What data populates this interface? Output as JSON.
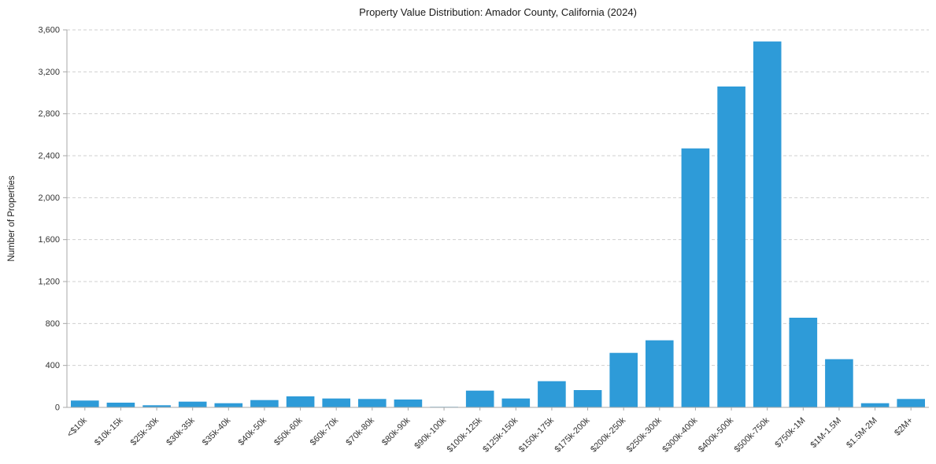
{
  "chart": {
    "title": "Property Value Distribution: Amador County, California (2024)",
    "ylabel": "Number of Properties"
  },
  "colors": {
    "bar": "#2E9BD8",
    "grid": "#cfcfcf",
    "axis": "#a8a8a8",
    "text": "#333333"
  },
  "chart_data": {
    "type": "bar",
    "title": "Property Value Distribution: Amador County, California (2024)",
    "xlabel": "",
    "ylabel": "Number of Properties",
    "categories": [
      "<$10k",
      "$10k-15k",
      "$25k-30k",
      "$30k-35k",
      "$35k-40k",
      "$40k-50k",
      "$50k-60k",
      "$60k-70k",
      "$70k-80k",
      "$80k-90k",
      "$90k-100k",
      "$100k-125k",
      "$125k-150k",
      "$150k-175k",
      "$175k-200k",
      "$200k-250k",
      "$250k-300k",
      "$300k-400k",
      "$400k-500k",
      "$500k-750k",
      "$750k-1M",
      "$1M-1.5M",
      "$1.5M-2M",
      "$2M+"
    ],
    "values": [
      65,
      45,
      20,
      55,
      40,
      70,
      105,
      85,
      80,
      75,
      5,
      160,
      85,
      250,
      165,
      520,
      640,
      2470,
      3060,
      3490,
      855,
      460,
      40,
      80
    ],
    "ylim": [
      0,
      3600
    ],
    "ytick_step": 400,
    "yticks": [
      0,
      400,
      800,
      1200,
      1600,
      2000,
      2400,
      2800,
      3200,
      3600
    ],
    "grid": "dashed-horizontal",
    "legend": "none",
    "bar_color": "#2E9BD8"
  }
}
